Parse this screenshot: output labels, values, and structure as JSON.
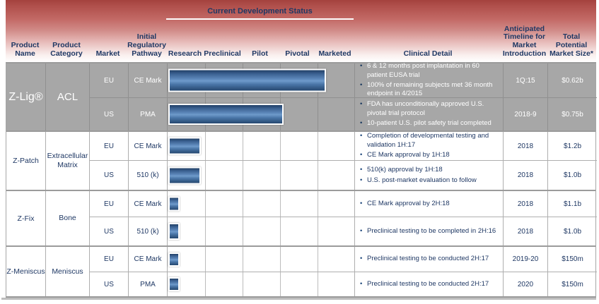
{
  "header": {
    "status_title": "Current Development Status",
    "columns": {
      "product_name": "Product Name",
      "product_category": "Product Category",
      "market": "Market",
      "pathway": "Initial Regulatory Pathway",
      "clinical_detail": "Clinical Detail",
      "timeline": "Anticipated Timeline for Market Introduction",
      "market_size": "Total Potential Market Size*"
    },
    "stages": [
      "Research",
      "Preclinical",
      "Pilot",
      "Pivotal",
      "Marketed"
    ]
  },
  "colors": {
    "header_gradient_top": "#a4423e",
    "navy_text": "#1f3864",
    "highlight_row_gray": "#a7a7a7",
    "bar_blue_mid": "#5e89bc",
    "bar_blue_dark": "#203f66",
    "bar_border": "#ffffff",
    "bullet_navy": "#1f497d"
  },
  "products": [
    {
      "name": "Z-Lig®",
      "category": "ACL",
      "highlighted": true,
      "rows": [
        {
          "market": "EU",
          "pathway": "CE Mark",
          "progress_pct": 84,
          "clinical_detail": [
            "6 & 12 months post implantation in 60 patient EUSA trial",
            "100% of remaining subjects met 36 month endpoint in 4/2015"
          ],
          "timeline": "1Q:15",
          "market_size": "$0.62b"
        },
        {
          "market": "US",
          "pathway": "PMA",
          "progress_pct": 61.5,
          "clinical_detail": [
            "FDA has unconditionally approved U.S. pivotal trial protocol",
            "10-patient U.S. pilot safety trial completed"
          ],
          "timeline": "2018-9",
          "market_size": "$0.75b"
        }
      ]
    },
    {
      "name": "Z-Patch",
      "category": "Extracellular Matrix",
      "highlighted": false,
      "rows": [
        {
          "market": "EU",
          "pathway": "CE Mark",
          "progress_pct": 17.5,
          "clinical_detail": [
            "Completion of developmental  testing and validation  1H:17",
            "CE Mark approval by 1H:18"
          ],
          "timeline": "2018",
          "market_size": "$1.2b"
        },
        {
          "market": "US",
          "pathway": "510 (k)",
          "progress_pct": 17.5,
          "clinical_detail": [
            "510(k) approval by 1H:18",
            "U.S. post-market evaluation to follow"
          ],
          "timeline": "2018",
          "market_size": "$1.0b"
        }
      ]
    },
    {
      "name": "Z-Fix",
      "category": "Bone",
      "highlighted": false,
      "rows": [
        {
          "market": "EU",
          "pathway": "CE Mark",
          "progress_pct": 6,
          "clinical_detail": [
            "CE Mark approval by 2H:18"
          ],
          "timeline": "2018",
          "market_size": "$1.1b"
        },
        {
          "market": "US",
          "pathway": "510 (k)",
          "progress_pct": 6,
          "clinical_detail": [
            "Preclinical testing to be completed in 2H:16"
          ],
          "timeline": "2018",
          "market_size": "$1.0b"
        }
      ]
    },
    {
      "name": "Z-Meniscus",
      "category": "Meniscus",
      "highlighted": false,
      "rows": [
        {
          "market": "EU",
          "pathway": "CE Mark",
          "progress_pct": 6,
          "clinical_detail": [
            "Preclinical testing to be conducted 2H:17"
          ],
          "timeline": "2019-20",
          "market_size": "$150m"
        },
        {
          "market": "US",
          "pathway": "PMA",
          "progress_pct": 6,
          "clinical_detail": [
            "Preclinical testing to be conducted 2H:17"
          ],
          "timeline": "2020",
          "market_size": "$150m"
        }
      ]
    }
  ]
}
